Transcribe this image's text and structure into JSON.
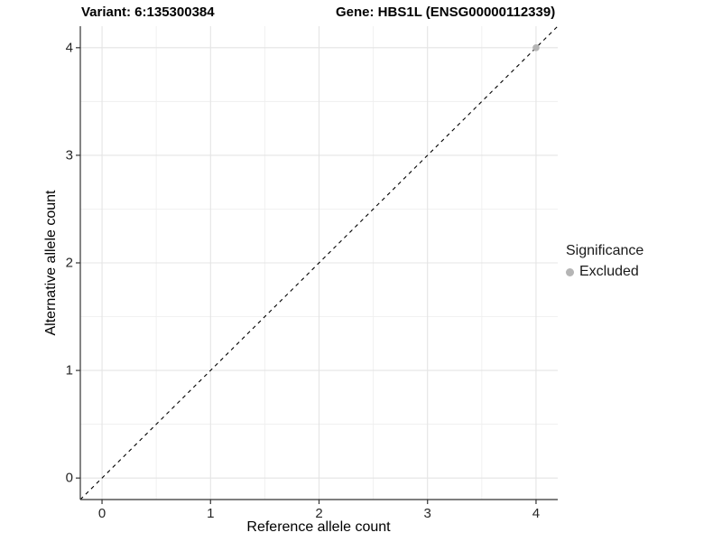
{
  "chart_data": {
    "type": "scatter",
    "title_variant": "Variant: 6:135300384",
    "title_gene": "Gene: HBS1L (ENSG00000112339)",
    "xlabel": "Reference allele count",
    "ylabel": "Alternative allele count",
    "xlim": [
      -0.2,
      4.2
    ],
    "ylim": [
      -0.2,
      4.2
    ],
    "xticks": [
      0,
      1,
      2,
      3,
      4
    ],
    "yticks": [
      0,
      1,
      2,
      3,
      4
    ],
    "xtick_labels": [
      "0",
      "1",
      "2",
      "3",
      "4"
    ],
    "ytick_labels": [
      "0",
      "1",
      "2",
      "3",
      "4"
    ],
    "xticks_minor": [
      0.5,
      1.5,
      2.5,
      3.5
    ],
    "yticks_minor": [
      0.5,
      1.5,
      2.5,
      3.5
    ],
    "grid": "on",
    "abline": {
      "slope": 1,
      "intercept": 0,
      "linetype": "dashed",
      "color": "#000000"
    },
    "points": [
      {
        "x": 4,
        "y": 4,
        "series": "Excluded"
      }
    ],
    "legend": {
      "position": "right",
      "title": "Significance",
      "items": [
        {
          "label": "Excluded",
          "color": "#b5b5b5"
        }
      ]
    },
    "colors": {
      "background": "#ffffff",
      "grid_major": "#e4e4e4",
      "grid_minor": "#efefef",
      "axis": "#333333",
      "excluded_point": "#b5b5b5"
    }
  }
}
